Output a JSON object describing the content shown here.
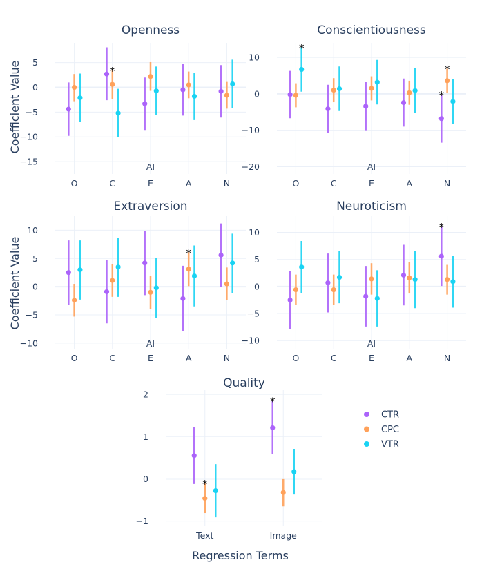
{
  "colors": {
    "CTR": "#ab63fa",
    "CPC": "#ffa15a",
    "VTR": "#19d3f3",
    "grid": "#ebf0f8",
    "text": "#2a3f5f"
  },
  "legend": [
    {
      "name": "CTR"
    },
    {
      "name": "CPC"
    },
    {
      "name": "VTR"
    }
  ],
  "axis_titles": {
    "y_top": "Coefficient Value",
    "y_mid": "Coefficient Value",
    "x_bottom": "Regression Terms"
  },
  "chart_data": [
    {
      "type": "errorbar",
      "title": "Openness",
      "categories": [
        "O",
        "C",
        "E",
        "A",
        "N"
      ],
      "annotation": "AI",
      "ylim": [
        -17.5,
        9
      ],
      "yticks": [
        -15,
        -10,
        -5,
        0,
        5
      ],
      "series": [
        {
          "name": "CTR",
          "values": [
            -4.4,
            2.7,
            -3.3,
            -0.5,
            -0.8
          ],
          "lower": [
            -9.8,
            -2.6,
            -8.6,
            -5.7,
            -6.1
          ],
          "upper": [
            1,
            8.1,
            2,
            4.8,
            4.5
          ],
          "sig": [
            false,
            false,
            false,
            false,
            false
          ]
        },
        {
          "name": "CPC",
          "values": [
            0,
            0.6,
            2.2,
            0.5,
            -1.6
          ],
          "lower": [
            -2.8,
            -2.3,
            -0.7,
            -2.2,
            -4.3
          ],
          "upper": [
            2.7,
            3.4,
            5.1,
            3.2,
            1.1
          ],
          "sig": [
            false,
            true,
            false,
            false,
            false
          ]
        },
        {
          "name": "VTR",
          "values": [
            -2.1,
            -5.2,
            -0.7,
            -1.8,
            0.7
          ],
          "lower": [
            -7,
            -10.1,
            -5.6,
            -6.6,
            -4.2
          ],
          "upper": [
            2.8,
            -0.3,
            4.2,
            3,
            5.6
          ],
          "sig": [
            false,
            false,
            false,
            false,
            false
          ]
        }
      ]
    },
    {
      "type": "errorbar",
      "title": "Conscientiousness",
      "categories": [
        "O",
        "C",
        "E",
        "A",
        "N"
      ],
      "annotation": "AI",
      "ylim": [
        -22,
        14
      ],
      "yticks": [
        -20,
        -10,
        0,
        10
      ],
      "series": [
        {
          "name": "CTR",
          "values": [
            -0.2,
            -4.1,
            -3.4,
            -2.4,
            -6.8
          ],
          "lower": [
            -6.7,
            -10.7,
            -10,
            -9,
            -13.4
          ],
          "upper": [
            6.3,
            2.5,
            3.2,
            4.2,
            -0.2
          ],
          "sig": [
            false,
            false,
            false,
            false,
            true
          ]
        },
        {
          "name": "CPC",
          "values": [
            -0.4,
            1,
            1.5,
            0.3,
            3.6
          ],
          "lower": [
            -3.7,
            -2.3,
            -1.8,
            -3,
            0.3
          ],
          "upper": [
            2.9,
            4.3,
            4.8,
            3.6,
            6.9
          ],
          "sig": [
            false,
            false,
            false,
            false,
            true
          ]
        },
        {
          "name": "VTR",
          "values": [
            6.7,
            1.4,
            3.2,
            0.9,
            -2.1
          ],
          "lower": [
            0.6,
            -4.7,
            -2.9,
            -5.2,
            -8.2
          ],
          "upper": [
            12.8,
            7.5,
            9.3,
            7,
            4
          ],
          "sig": [
            true,
            false,
            false,
            false,
            false
          ]
        }
      ]
    },
    {
      "type": "errorbar",
      "title": "Extraversion",
      "categories": [
        "O",
        "C",
        "E",
        "A",
        "N"
      ],
      "annotation": "AI",
      "ylim": [
        -11,
        12.5
      ],
      "yticks": [
        -10,
        -5,
        0,
        5,
        10
      ],
      "series": [
        {
          "name": "CTR",
          "values": [
            2.5,
            -0.9,
            4.2,
            -2.1,
            5.6
          ],
          "lower": [
            -3.2,
            -6.5,
            -1.5,
            -7.9,
            -0.1
          ],
          "upper": [
            8.2,
            4.7,
            9.9,
            3.7,
            11.2
          ],
          "sig": [
            false,
            false,
            false,
            false,
            false
          ]
        },
        {
          "name": "CPC",
          "values": [
            -2.4,
            1.1,
            -1,
            3.1,
            0.5
          ],
          "lower": [
            -5.3,
            -1.8,
            -3.9,
            0.1,
            -2.4
          ],
          "upper": [
            0.5,
            4,
            1.9,
            6.1,
            3.4
          ],
          "sig": [
            false,
            false,
            false,
            true,
            false
          ]
        },
        {
          "name": "VTR",
          "values": [
            3,
            3.5,
            -0.2,
            1.9,
            4.2
          ],
          "lower": [
            -2.3,
            -1.8,
            -5.5,
            -3.5,
            -1.1
          ],
          "upper": [
            8.2,
            8.7,
            5.1,
            7.3,
            9.4
          ],
          "sig": [
            false,
            false,
            false,
            false,
            false
          ]
        }
      ]
    },
    {
      "type": "errorbar",
      "title": "Neuroticism",
      "categories": [
        "O",
        "C",
        "E",
        "A",
        "N"
      ],
      "annotation": "AI",
      "ylim": [
        -11.5,
        13
      ],
      "yticks": [
        -10,
        -5,
        0,
        5,
        10
      ],
      "series": [
        {
          "name": "CTR",
          "values": [
            -2.5,
            0.7,
            -1.8,
            2.1,
            5.6
          ],
          "lower": [
            -7.9,
            -4.8,
            -7.4,
            -3.5,
            0.1
          ],
          "upper": [
            2.9,
            6.1,
            3.8,
            7.7,
            11.1
          ],
          "sig": [
            false,
            false,
            false,
            false,
            true
          ]
        },
        {
          "name": "CPC",
          "values": [
            -0.6,
            -0.6,
            1.4,
            1.6,
            1.3
          ],
          "lower": [
            -3.4,
            -3.4,
            -1.5,
            -1.3,
            -1.5
          ],
          "upper": [
            2.2,
            2.2,
            4.3,
            4.5,
            4
          ],
          "sig": [
            false,
            false,
            false,
            false,
            false
          ]
        },
        {
          "name": "VTR",
          "values": [
            3.6,
            1.7,
            -2.2,
            1.3,
            0.9
          ],
          "lower": [
            -1.2,
            -3.1,
            -7.4,
            -4,
            -3.9
          ],
          "upper": [
            8.4,
            6.5,
            3,
            6.6,
            5.7
          ],
          "sig": [
            false,
            false,
            false,
            false,
            false
          ]
        }
      ]
    },
    {
      "type": "errorbar",
      "title": "Quality",
      "categories": [
        "Text",
        "Image"
      ],
      "ylim": [
        -1.12,
        2.1
      ],
      "yticks": [
        -1,
        0,
        1,
        2
      ],
      "series": [
        {
          "name": "CTR",
          "values": [
            0.55,
            1.21
          ],
          "lower": [
            -0.12,
            0.58
          ],
          "upper": [
            1.22,
            1.85
          ],
          "sig": [
            false,
            true
          ]
        },
        {
          "name": "CPC",
          "values": [
            -0.46,
            -0.32
          ],
          "lower": [
            -0.81,
            -0.65
          ],
          "upper": [
            -0.11,
            0.01
          ],
          "sig": [
            true,
            false
          ]
        },
        {
          "name": "VTR",
          "values": [
            -0.28,
            0.17
          ],
          "lower": [
            -0.91,
            -0.37
          ],
          "upper": [
            0.35,
            0.71
          ],
          "sig": [
            false,
            false
          ]
        }
      ]
    }
  ]
}
